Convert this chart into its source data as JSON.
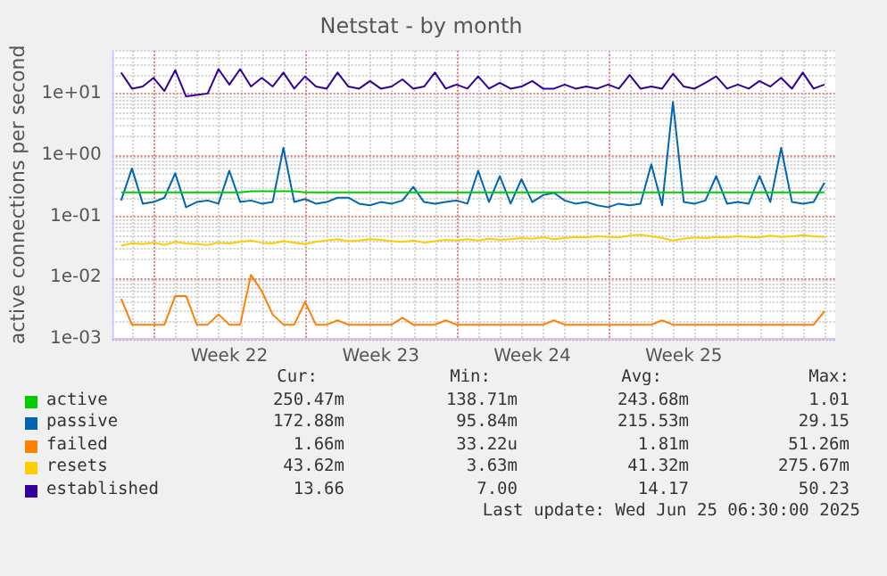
{
  "chart_data": {
    "type": "line",
    "title": "Netstat - by month",
    "ylabel": "active connections per second",
    "log": "y",
    "grid": true,
    "legend": "bottom",
    "marker": "none",
    "line_style": "solid",
    "ylim": [
      0.001,
      50
    ],
    "yticks": [
      {
        "value": 0.001,
        "label": "1e-03"
      },
      {
        "value": 0.01,
        "label": "1e-02"
      },
      {
        "value": 0.1,
        "label": "1e-01"
      },
      {
        "value": 1,
        "label": "1e+00"
      },
      {
        "value": 10,
        "label": "1e+01"
      }
    ],
    "xlim": [
      "2025-05-24T02:00",
      "2025-06-26T12:00"
    ],
    "xticks": [
      {
        "value": "2025-05-26",
        "label": null
      },
      {
        "value": "2025-05-29T12:00",
        "label": "Week 22"
      },
      {
        "value": "2025-06-02",
        "label": null
      },
      {
        "value": "2025-06-05T12:00",
        "label": "Week 23"
      },
      {
        "value": "2025-06-09",
        "label": null
      },
      {
        "value": "2025-06-12T12:00",
        "label": "Week 24"
      },
      {
        "value": "2025-06-16",
        "label": null
      },
      {
        "value": "2025-06-19T12:00",
        "label": "Week 25"
      }
    ],
    "x": [
      "2025-05-24T12:00",
      "2025-05-25T00:00",
      "2025-05-25T12:00",
      "2025-05-26T00:00",
      "2025-05-26T12:00",
      "2025-05-27T00:00",
      "2025-05-27T12:00",
      "2025-05-28T00:00",
      "2025-05-28T12:00",
      "2025-05-29T00:00",
      "2025-05-29T12:00",
      "2025-05-30T00:00",
      "2025-05-30T12:00",
      "2025-05-31T00:00",
      "2025-05-31T12:00",
      "2025-06-01T00:00",
      "2025-06-01T12:00",
      "2025-06-02T00:00",
      "2025-06-02T12:00",
      "2025-06-03T00:00",
      "2025-06-03T12:00",
      "2025-06-04T00:00",
      "2025-06-04T12:00",
      "2025-06-05T00:00",
      "2025-06-05T12:00",
      "2025-06-06T00:00",
      "2025-06-06T12:00",
      "2025-06-07T00:00",
      "2025-06-07T12:00",
      "2025-06-08T00:00",
      "2025-06-08T12:00",
      "2025-06-09T00:00",
      "2025-06-09T12:00",
      "2025-06-10T00:00",
      "2025-06-10T12:00",
      "2025-06-11T00:00",
      "2025-06-11T12:00",
      "2025-06-12T00:00",
      "2025-06-12T12:00",
      "2025-06-13T00:00",
      "2025-06-13T12:00",
      "2025-06-14T00:00",
      "2025-06-14T12:00",
      "2025-06-15T00:00",
      "2025-06-15T12:00",
      "2025-06-16T00:00",
      "2025-06-16T12:00",
      "2025-06-17T00:00",
      "2025-06-17T12:00",
      "2025-06-18T00:00",
      "2025-06-18T12:00",
      "2025-06-19T00:00",
      "2025-06-19T12:00",
      "2025-06-20T00:00",
      "2025-06-20T12:00",
      "2025-06-21T00:00",
      "2025-06-21T12:00",
      "2025-06-22T00:00",
      "2025-06-22T12:00",
      "2025-06-23T00:00",
      "2025-06-23T12:00",
      "2025-06-24T00:00",
      "2025-06-24T12:00",
      "2025-06-25T00:00",
      "2025-06-25T12:00",
      "2025-06-26T00:00"
    ],
    "series": [
      {
        "name": "active",
        "color": "#00cc00",
        "values": [
          0.245,
          0.245,
          0.245,
          0.245,
          0.245,
          0.245,
          0.245,
          0.245,
          0.245,
          0.245,
          0.245,
          0.245,
          0.255,
          0.255,
          0.255,
          0.255,
          0.255,
          0.245,
          0.245,
          0.245,
          0.245,
          0.245,
          0.245,
          0.245,
          0.245,
          0.245,
          0.245,
          0.245,
          0.245,
          0.245,
          0.245,
          0.245,
          0.245,
          0.245,
          0.245,
          0.245,
          0.245,
          0.245,
          0.245,
          0.245,
          0.245,
          0.245,
          0.245,
          0.245,
          0.245,
          0.245,
          0.245,
          0.245,
          0.245,
          0.245,
          0.245,
          0.245,
          0.245,
          0.245,
          0.245,
          0.245,
          0.245,
          0.245,
          0.245,
          0.245,
          0.245,
          0.245,
          0.245,
          0.245,
          0.245,
          0.245
        ]
      },
      {
        "name": "passive",
        "color": "#0066b3",
        "values": [
          0.18,
          0.6,
          0.16,
          0.17,
          0.2,
          0.5,
          0.14,
          0.17,
          0.18,
          0.16,
          0.55,
          0.17,
          0.18,
          0.16,
          0.17,
          1.3,
          0.17,
          0.19,
          0.16,
          0.17,
          0.2,
          0.2,
          0.16,
          0.15,
          0.17,
          0.16,
          0.18,
          0.3,
          0.17,
          0.16,
          0.17,
          0.18,
          0.16,
          0.55,
          0.17,
          0.45,
          0.16,
          0.4,
          0.17,
          0.22,
          0.24,
          0.18,
          0.16,
          0.17,
          0.15,
          0.14,
          0.16,
          0.15,
          0.16,
          0.7,
          0.15,
          7.3,
          0.17,
          0.16,
          0.18,
          0.45,
          0.16,
          0.17,
          0.16,
          0.45,
          0.17,
          1.3,
          0.17,
          0.16,
          0.17,
          0.35
        ]
      },
      {
        "name": "failed",
        "color": "#ff8000",
        "values": [
          0.0045,
          0.0017,
          0.0017,
          0.0017,
          0.0017,
          0.005,
          0.005,
          0.0017,
          0.0017,
          0.0025,
          0.0017,
          0.0017,
          0.011,
          0.006,
          0.0025,
          0.0017,
          0.0017,
          0.004,
          0.0017,
          0.0017,
          0.002,
          0.0017,
          0.0017,
          0.0017,
          0.0017,
          0.0017,
          0.0022,
          0.0017,
          0.0017,
          0.0017,
          0.002,
          0.0017,
          0.0017,
          0.0017,
          0.0017,
          0.0017,
          0.0017,
          0.0017,
          0.0017,
          0.0017,
          0.002,
          0.0017,
          0.0017,
          0.0017,
          0.0017,
          0.0017,
          0.0017,
          0.0017,
          0.0017,
          0.0017,
          0.002,
          0.0017,
          0.0017,
          0.0017,
          0.0017,
          0.0017,
          0.0017,
          0.0017,
          0.0017,
          0.0017,
          0.0017,
          0.0017,
          0.0017,
          0.0017,
          0.0017,
          0.0028
        ]
      },
      {
        "name": "resets",
        "color": "#ffcc00",
        "values": [
          0.033,
          0.036,
          0.035,
          0.037,
          0.034,
          0.038,
          0.036,
          0.035,
          0.034,
          0.037,
          0.036,
          0.038,
          0.04,
          0.037,
          0.036,
          0.039,
          0.037,
          0.035,
          0.038,
          0.04,
          0.042,
          0.039,
          0.04,
          0.042,
          0.041,
          0.039,
          0.038,
          0.04,
          0.037,
          0.039,
          0.041,
          0.04,
          0.042,
          0.04,
          0.043,
          0.041,
          0.042,
          0.044,
          0.043,
          0.045,
          0.042,
          0.044,
          0.046,
          0.045,
          0.047,
          0.046,
          0.045,
          0.048,
          0.05,
          0.047,
          0.044,
          0.04,
          0.043,
          0.045,
          0.044,
          0.046,
          0.045,
          0.047,
          0.046,
          0.045,
          0.048,
          0.046,
          0.047,
          0.049,
          0.047,
          0.046
        ]
      },
      {
        "name": "established",
        "color": "#330099",
        "values": [
          22,
          12,
          13,
          18,
          11,
          24,
          9,
          9.5,
          10,
          25,
          14,
          25,
          13,
          18,
          13,
          22,
          12,
          19,
          13,
          12,
          22,
          13,
          12,
          16,
          12,
          13,
          17,
          12,
          13,
          22,
          12,
          14,
          12,
          19,
          12,
          15,
          12,
          13,
          16,
          12,
          12,
          14,
          12,
          13,
          12,
          14,
          12,
          20,
          12,
          13,
          12,
          21,
          13,
          12,
          15,
          19,
          12,
          14,
          12,
          16,
          13,
          18,
          12,
          22,
          12,
          14
        ]
      }
    ],
    "annotations": [
      "Cur:",
      "Min:",
      "Avg:",
      "Max:",
      "250.47m",
      "138.71m",
      "243.68m",
      "1.01",
      "172.88m",
      "95.84m",
      "215.53m",
      "29.15",
      "1.66m",
      "33.22u",
      "1.81m",
      "51.26m",
      "43.62m",
      "3.63m",
      "41.32m",
      "275.67m",
      "13.66",
      "7.00",
      "14.17",
      "50.23",
      "Last update: Wed Jun 25 06:30:00 2025"
    ]
  }
}
